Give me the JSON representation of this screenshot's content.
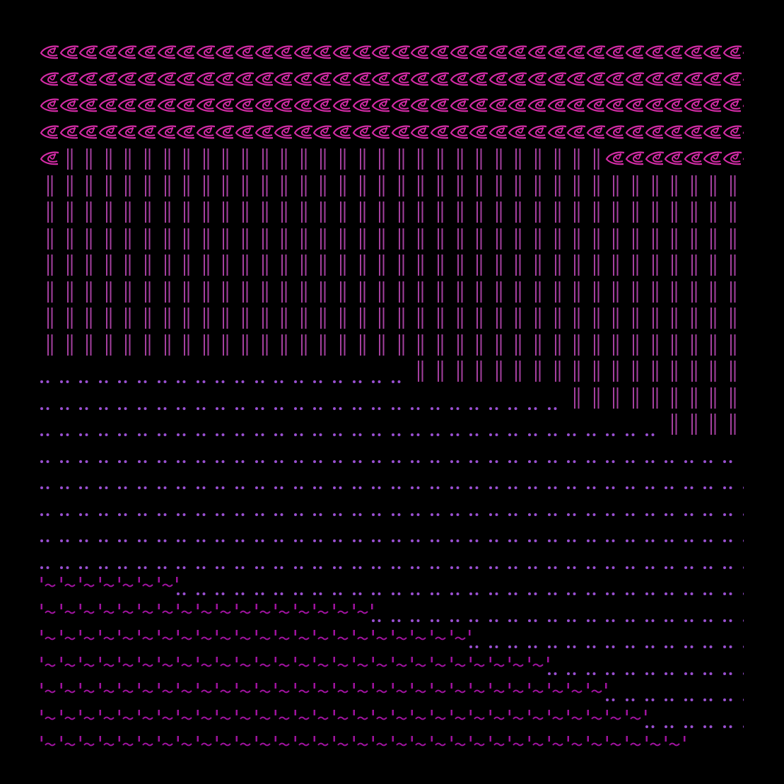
{
  "colors": {
    "background": "#000000",
    "eye": "#d42ca6",
    "bars": "#a5409f",
    "dots": "#9a50d2",
    "tilde": "#a0139f"
  },
  "glyph_icons": {
    "eye": "eye-icon",
    "bars": "double-bar-icon",
    "dots": "double-dot-icon",
    "tilde": "bar-tilde-icon"
  },
  "rows": [
    [
      [
        "eye",
        37
      ]
    ],
    [
      [
        "eye",
        37
      ]
    ],
    [
      [
        "eye",
        37
      ]
    ],
    [
      [
        "eye",
        37
      ]
    ],
    [
      [
        "eye",
        1
      ],
      [
        "bars",
        28
      ],
      [
        "eye",
        8
      ]
    ],
    [
      [
        "bars",
        37
      ]
    ],
    [
      [
        "bars",
        37
      ]
    ],
    [
      [
        "bars",
        37
      ]
    ],
    [
      [
        "bars",
        37
      ]
    ],
    [
      [
        "bars",
        37
      ]
    ],
    [
      [
        "bars",
        37
      ]
    ],
    [
      [
        "bars",
        37
      ]
    ],
    [
      [
        "dots",
        19
      ],
      [
        "bars",
        18
      ]
    ],
    [
      [
        "dots",
        27
      ],
      [
        "bars",
        10
      ]
    ],
    [
      [
        "dots",
        32
      ],
      [
        "bars",
        5
      ]
    ],
    [
      [
        "dots",
        36
      ],
      [
        "bars",
        1
      ]
    ],
    [
      [
        "dots",
        37
      ]
    ],
    [
      [
        "dots",
        37
      ]
    ],
    [
      [
        "dots",
        37
      ]
    ],
    [
      [
        "dots",
        37
      ]
    ],
    [
      [
        "tilde",
        7
      ],
      [
        "dots",
        30
      ]
    ],
    [
      [
        "tilde",
        17
      ],
      [
        "dots",
        20
      ]
    ],
    [
      [
        "tilde",
        22
      ],
      [
        "dots",
        15
      ]
    ],
    [
      [
        "tilde",
        26
      ],
      [
        "dots",
        11
      ]
    ],
    [
      [
        "tilde",
        29
      ],
      [
        "dots",
        8
      ]
    ],
    [
      [
        "tilde",
        31
      ],
      [
        "dots",
        6
      ]
    ],
    [
      [
        "tilde",
        33
      ],
      [
        "dots",
        4
      ]
    ]
  ]
}
